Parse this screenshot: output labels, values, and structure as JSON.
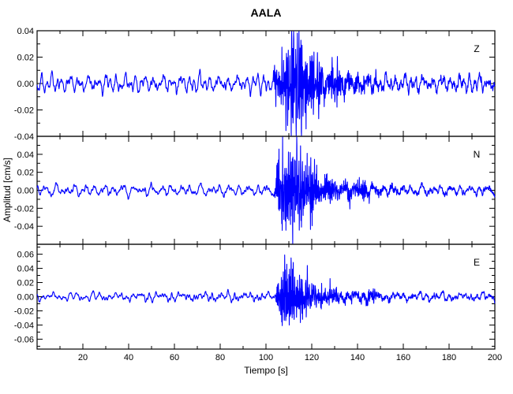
{
  "chart_data": {
    "type": "line",
    "title": "AALA",
    "xlabel": "Tiempo [s]",
    "ylabel": "Amplitud [cm/s]",
    "trace_color": "#0000ff",
    "axis_color": "#000000",
    "background_color": "#ffffff",
    "x_axis": {
      "min": 0,
      "max": 200,
      "major_step": 20,
      "minor_step": 10,
      "tick_values": [
        20,
        40,
        60,
        80,
        100,
        120,
        140,
        160,
        180,
        200
      ],
      "tick_labels": [
        "20",
        "40",
        "60",
        "80",
        "100",
        "120",
        "140",
        "160",
        "180",
        "200"
      ]
    },
    "event": {
      "onset_s": 103,
      "peak_s": 112,
      "coda_end_s": 155
    },
    "panels": [
      {
        "label": "Z",
        "ymin": -0.04,
        "ymax": 0.04,
        "yminor_step": 0.01,
        "ytick_values": [
          0.04,
          0.02,
          0.0,
          -0.02,
          -0.04
        ],
        "ytick_labels": [
          "0.04",
          "0.02",
          "0.00",
          "-0.02",
          "-0.04"
        ],
        "noise_amp": 0.0042,
        "seed": 101,
        "peak_amp": 0.041,
        "envelope": [
          [
            0,
            0
          ],
          [
            103,
            0
          ],
          [
            104.5,
            0.018
          ],
          [
            106,
            0.014
          ],
          [
            108,
            0.03
          ],
          [
            110,
            0.038
          ],
          [
            113,
            0.041
          ],
          [
            116,
            0.036
          ],
          [
            119,
            0.026
          ],
          [
            122,
            0.018
          ],
          [
            126,
            0.014
          ],
          [
            131,
            0.012
          ],
          [
            136,
            0.009
          ],
          [
            142,
            0.006
          ],
          [
            150,
            0.004
          ],
          [
            160,
            0.002
          ],
          [
            200,
            0.0015
          ]
        ]
      },
      {
        "label": "N",
        "ymin": -0.06,
        "ymax": 0.06,
        "yminor_step": 0.01,
        "ytick_values": [
          0.04,
          0.02,
          0.0,
          -0.02,
          -0.04
        ],
        "ytick_labels": [
          "0.04",
          "0.02",
          "0.00",
          "-0.02",
          "-0.04"
        ],
        "noise_amp": 0.0038,
        "seed": 202,
        "peak_amp": 0.058,
        "envelope": [
          [
            0,
            0
          ],
          [
            103.5,
            0
          ],
          [
            105,
            0.022
          ],
          [
            107,
            0.046
          ],
          [
            109,
            0.058
          ],
          [
            112,
            0.056
          ],
          [
            115,
            0.05
          ],
          [
            118,
            0.042
          ],
          [
            121,
            0.031
          ],
          [
            125,
            0.022
          ],
          [
            129,
            0.016
          ],
          [
            134,
            0.012
          ],
          [
            139,
            0.009
          ],
          [
            143,
            0.013
          ],
          [
            146,
            0.006
          ],
          [
            152,
            0.004
          ],
          [
            160,
            0.002
          ],
          [
            200,
            0.0015
          ]
        ]
      },
      {
        "label": "E",
        "ymin": -0.074,
        "ymax": 0.074,
        "yminor_step": 0.01,
        "ytick_values": [
          0.06,
          0.04,
          0.02,
          0.0,
          -0.02,
          -0.04,
          -0.06
        ],
        "ytick_labels": [
          "0.06",
          "0.04",
          "0.02",
          "0.00",
          "-0.02",
          "-0.04",
          "-0.06"
        ],
        "noise_amp": 0.0048,
        "seed": 303,
        "peak_amp": 0.07,
        "envelope": [
          [
            0,
            0
          ],
          [
            104,
            0
          ],
          [
            105.5,
            0.03
          ],
          [
            106.6,
            0.07
          ],
          [
            108,
            0.05
          ],
          [
            110,
            0.056
          ],
          [
            112,
            0.05
          ],
          [
            115,
            0.044
          ],
          [
            118,
            0.035
          ],
          [
            121,
            0.026
          ],
          [
            125,
            0.018
          ],
          [
            130,
            0.013
          ],
          [
            135,
            0.01
          ],
          [
            140,
            0.007
          ],
          [
            146,
            0.011
          ],
          [
            150,
            0.005
          ],
          [
            156,
            0.003
          ],
          [
            200,
            0.0015
          ]
        ]
      }
    ]
  }
}
